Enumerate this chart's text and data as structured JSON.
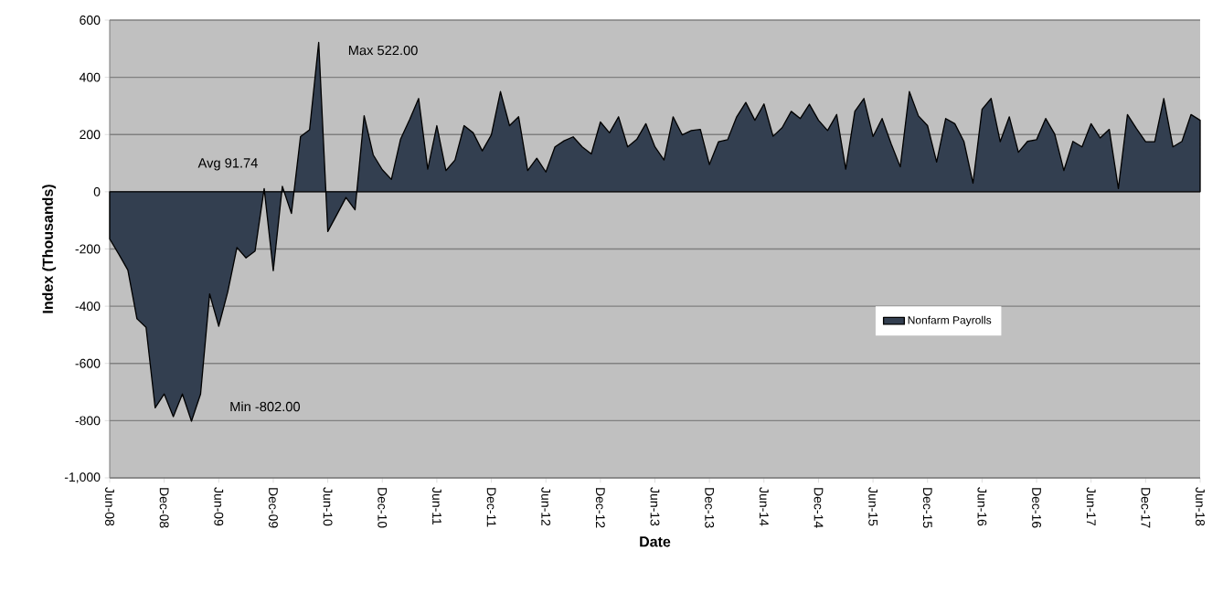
{
  "chart_data": {
    "type": "area",
    "xlabel": "Date",
    "ylabel": "Index (Thousands)",
    "x": [
      "2008-06",
      "2008-07",
      "2008-08",
      "2008-09",
      "2008-10",
      "2008-11",
      "2008-12",
      "2009-01",
      "2009-02",
      "2009-03",
      "2009-04",
      "2009-05",
      "2009-06",
      "2009-07",
      "2009-08",
      "2009-09",
      "2009-10",
      "2009-11",
      "2009-12",
      "2010-01",
      "2010-02",
      "2010-03",
      "2010-04",
      "2010-05",
      "2010-06",
      "2010-07",
      "2010-08",
      "2010-09",
      "2010-10",
      "2010-11",
      "2010-12",
      "2011-01",
      "2011-02",
      "2011-03",
      "2011-04",
      "2011-05",
      "2011-06",
      "2011-07",
      "2011-08",
      "2011-09",
      "2011-10",
      "2011-11",
      "2011-12",
      "2012-01",
      "2012-02",
      "2012-03",
      "2012-04",
      "2012-05",
      "2012-06",
      "2012-07",
      "2012-08",
      "2012-09",
      "2012-10",
      "2012-11",
      "2012-12",
      "2013-01",
      "2013-02",
      "2013-03",
      "2013-04",
      "2013-05",
      "2013-06",
      "2013-07",
      "2013-08",
      "2013-09",
      "2013-10",
      "2013-11",
      "2013-12",
      "2014-01",
      "2014-02",
      "2014-03",
      "2014-04",
      "2014-05",
      "2014-06",
      "2014-07",
      "2014-08",
      "2014-09",
      "2014-10",
      "2014-11",
      "2014-12",
      "2015-01",
      "2015-02",
      "2015-03",
      "2015-04",
      "2015-05",
      "2015-06",
      "2015-07",
      "2015-08",
      "2015-09",
      "2015-10",
      "2015-11",
      "2015-12",
      "2016-01",
      "2016-02",
      "2016-03",
      "2016-04",
      "2016-05",
      "2016-06",
      "2016-07",
      "2016-08",
      "2016-09",
      "2016-10",
      "2016-11",
      "2016-12",
      "2017-01",
      "2017-02",
      "2017-03",
      "2017-04",
      "2017-05",
      "2017-06",
      "2017-07",
      "2017-08",
      "2017-09",
      "2017-10",
      "2017-11",
      "2017-12",
      "2018-01",
      "2018-02",
      "2018-03",
      "2018-04",
      "2018-05",
      "2018-06"
    ],
    "series": [
      {
        "name": "Nonfarm Payrolls",
        "color": "#333f50",
        "values": [
          -165,
          -218,
          -274,
          -444,
          -474,
          -755,
          -707,
          -786,
          -707,
          -802,
          -707,
          -357,
          -470,
          -349,
          -195,
          -231,
          -207,
          11,
          -276,
          19,
          -76,
          193,
          217,
          522,
          -139,
          -80,
          -20,
          -63,
          266,
          129,
          77,
          43,
          183,
          252,
          326,
          79,
          231,
          74,
          111,
          231,
          206,
          143,
          199,
          350,
          231,
          262,
          74,
          117,
          69,
          157,
          178,
          192,
          157,
          132,
          244,
          206,
          262,
          157,
          183,
          238,
          157,
          111,
          262,
          199,
          214,
          218,
          95,
          175,
          182,
          262,
          312,
          250,
          307,
          194,
          224,
          281,
          256,
          306,
          250,
          214,
          270,
          79,
          281,
          326,
          193,
          256,
          167,
          87,
          350,
          265,
          231,
          104,
          256,
          238,
          176,
          30,
          288,
          326,
          175,
          262,
          138,
          176,
          182,
          256,
          201,
          74,
          176,
          157,
          238,
          188,
          218,
          11,
          270,
          220,
          175,
          175,
          326,
          157,
          176,
          270,
          250
        ]
      }
    ],
    "xlim": [
      "2008-06",
      "2018-06"
    ],
    "xticks": [
      {
        "value": "2008-06",
        "label": "Jun-08"
      },
      {
        "value": "2008-12",
        "label": "Dec-08"
      },
      {
        "value": "2009-06",
        "label": "Jun-09"
      },
      {
        "value": "2009-12",
        "label": "Dec-09"
      },
      {
        "value": "2010-06",
        "label": "Jun-10"
      },
      {
        "value": "2010-12",
        "label": "Dec-10"
      },
      {
        "value": "2011-06",
        "label": "Jun-11"
      },
      {
        "value": "2011-12",
        "label": "Dec-11"
      },
      {
        "value": "2012-06",
        "label": "Jun-12"
      },
      {
        "value": "2012-12",
        "label": "Dec-12"
      },
      {
        "value": "2013-06",
        "label": "Jun-13"
      },
      {
        "value": "2013-12",
        "label": "Dec-13"
      },
      {
        "value": "2014-06",
        "label": "Jun-14"
      },
      {
        "value": "2014-12",
        "label": "Dec-14"
      },
      {
        "value": "2015-06",
        "label": "Jun-15"
      },
      {
        "value": "2015-12",
        "label": "Dec-15"
      },
      {
        "value": "2016-06",
        "label": "Jun-16"
      },
      {
        "value": "2016-12",
        "label": "Dec-16"
      },
      {
        "value": "2017-06",
        "label": "Jun-17"
      },
      {
        "value": "2017-12",
        "label": "Dec-17"
      },
      {
        "value": "2018-06",
        "label": "Jun-18"
      }
    ],
    "ylim": [
      -1000,
      600
    ],
    "yticks": [
      {
        "value": -1000,
        "label": "-1,000"
      },
      -800,
      -600,
      -400,
      -200,
      0,
      200,
      400,
      600
    ],
    "grid": "y",
    "legend": "right",
    "annotations": [
      "Max 522.00",
      "Min -802.00",
      "Avg 91.74"
    ]
  }
}
